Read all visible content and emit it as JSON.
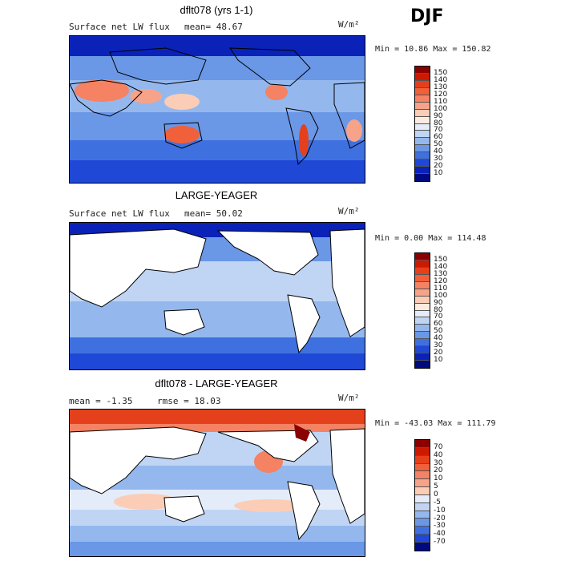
{
  "season": "DJF",
  "panels": [
    {
      "title": "dflt078 (yrs 1-1)",
      "sub_left": "Surface net LW flux",
      "sub_mid": "mean=  48.67",
      "units": "W/m²",
      "minmax": "Min =  10.86 Max = 150.82",
      "colorbar": {
        "labels": [
          "150",
          "140",
          "130",
          "120",
          "110",
          "100",
          "90",
          "80",
          "70",
          "60",
          "50",
          "40",
          "30",
          "20",
          "10"
        ],
        "colors": [
          "#8b0000",
          "#cc1a00",
          "#e5401c",
          "#f0603a",
          "#f48263",
          "#f6a389",
          "#fbcdb6",
          "#fdebe0",
          "#e4ecf9",
          "#c0d4f3",
          "#94b8ee",
          "#6a97e6",
          "#3f70e0",
          "#1f48d6",
          "#0a22b8",
          "#000a80"
        ]
      }
    },
    {
      "title": "LARGE-YEAGER",
      "sub_left": "Surface net LW flux",
      "sub_mid": "mean=  50.02",
      "units": "W/m²",
      "minmax": "Min =   0.00 Max = 114.48",
      "colorbar": {
        "labels": [
          "150",
          "140",
          "130",
          "120",
          "110",
          "100",
          "90",
          "80",
          "70",
          "60",
          "50",
          "40",
          "30",
          "20",
          "10"
        ],
        "colors": [
          "#8b0000",
          "#cc1a00",
          "#e5401c",
          "#f0603a",
          "#f48263",
          "#f6a389",
          "#fbcdb6",
          "#fdebe0",
          "#e4ecf9",
          "#c0d4f3",
          "#94b8ee",
          "#6a97e6",
          "#3f70e0",
          "#1f48d6",
          "#0a22b8",
          "#000a80"
        ]
      }
    },
    {
      "title": "dflt078 - LARGE-YEAGER",
      "sub_left": "mean =  -1.35",
      "sub_mid": "rmse =  18.03",
      "units": "W/m²",
      "minmax": "Min = -43.03 Max = 111.79",
      "colorbar": {
        "labels": [
          "70",
          "40",
          "30",
          "20",
          "10",
          "5",
          "0",
          "-5",
          "-10",
          "-20",
          "-30",
          "-40",
          "-70"
        ],
        "colors": [
          "#8b0000",
          "#cc1a00",
          "#e5401c",
          "#f0603a",
          "#f48263",
          "#f6a389",
          "#fbcdb6",
          "#e4ecf9",
          "#c0d4f3",
          "#94b8ee",
          "#6a97e6",
          "#3f70e0",
          "#1f48d6",
          "#000a80"
        ]
      }
    }
  ]
}
